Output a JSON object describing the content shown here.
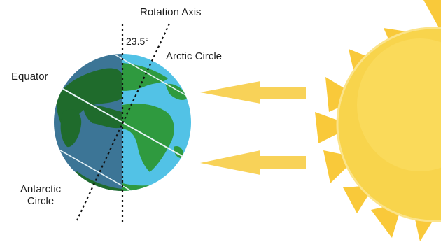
{
  "labels": {
    "rotation_axis": "Rotation Axis",
    "tilt_angle": "23.5°",
    "arctic_circle": "Arctic Circle",
    "equator": "Equator",
    "antarctic_line1": "Antarctic",
    "antarctic_line2": "Circle"
  },
  "colors": {
    "land_dark": "#1f6b2c",
    "land_light": "#3aa24a",
    "ocean_dark": "#3c7596",
    "ocean_light": "#52c2e6",
    "sun": "#f8d44c",
    "sun_rays": "#f9c93a",
    "arrows": "#f8d258"
  }
}
